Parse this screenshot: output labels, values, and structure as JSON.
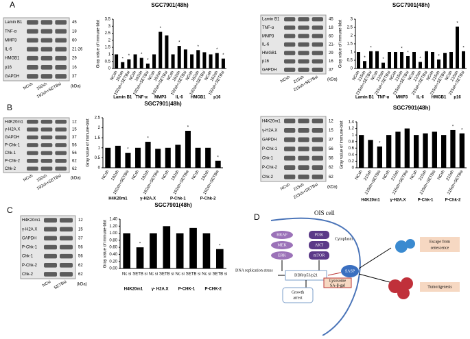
{
  "panel_letters": [
    "A",
    "B",
    "C",
    "D"
  ],
  "chart_data": [
    {
      "type": "bar",
      "title": "SGC7901(48h)",
      "ylabel": "Gray value of immune-blot",
      "color": "#000000",
      "categories": [
        "NCsh",
        "192sh",
        "192sh+SETBsi",
        "NCsh",
        "192sh",
        "192sh+SETBsi",
        "NCsh",
        "192sh",
        "192sh+SETBsi",
        "NCsh",
        "192sh",
        "192sh+SETBsi",
        "NCsh",
        "192sh",
        "192sh+SETBsi",
        "NCsh",
        "192sh",
        "192sh+SETBsi"
      ],
      "groups": [
        "Lamin B1",
        "TNF-α",
        "MMP3",
        "IL-6",
        "HMGB1",
        "p16"
      ],
      "values": [
        1,
        0.45,
        0.65,
        1,
        0.75,
        0.35,
        1,
        2.6,
        2.35,
        1,
        1.6,
        1.35,
        1,
        1.3,
        1.15,
        1,
        1.1,
        0.7
      ],
      "significance": [
        null,
        "*",
        "*",
        null,
        "*",
        "*",
        null,
        "*",
        null,
        null,
        "*",
        null,
        null,
        "*",
        null,
        null,
        "*",
        "*"
      ],
      "ylim": [
        0,
        3.5
      ],
      "yticks": [
        0,
        0.5,
        1,
        1.5,
        2,
        2.5,
        3,
        3.5
      ]
    },
    {
      "type": "bar",
      "title": "SGC7901(48h)",
      "ylabel": "Gray value of immune-blot",
      "color": "#000000",
      "categories": [
        "NCsh",
        "215sh",
        "215sh+SETBsi",
        "NCsh",
        "215sh",
        "215sh+SETBsi",
        "NCsh",
        "215sh",
        "215sh+SETBsi",
        "NCsh",
        "215sh",
        "215sh+SETBsi",
        "NCsh",
        "215sh",
        "215sh+SETBsi",
        "NCsh",
        "215sh",
        "215sh+SETBsi"
      ],
      "groups": [
        "Lamin B1",
        "TNF-α",
        "MMP3",
        "IL-6",
        "HMGB1",
        "p16"
      ],
      "values": [
        1,
        0.45,
        1.05,
        1.05,
        0.35,
        1,
        1,
        1,
        0.75,
        1,
        0.4,
        1.05,
        1,
        0.55,
        0.95,
        1,
        2.55,
        1.05
      ],
      "significance": [
        null,
        "*",
        "*",
        null,
        "*",
        null,
        null,
        "*",
        "*",
        null,
        "*",
        null,
        null,
        "*",
        null,
        null,
        "*",
        "*"
      ],
      "ylim": [
        0,
        3
      ],
      "yticks": [
        0,
        0.5,
        1,
        1.5,
        2,
        2.5,
        3
      ]
    },
    {
      "type": "bar",
      "title": "SGC7901(48h)",
      "ylabel": "Gray value of immune-blot",
      "color": "#000000",
      "categories": [
        "NCsh",
        "192sh",
        "192sh+SETBsi",
        "NCsh",
        "192sh",
        "192sh+SETBsi",
        "NCsh",
        "192sh",
        "192sh+SETBsi",
        "NCsh",
        "192sh",
        "192sh+SETBsi"
      ],
      "groups": [
        "H4K20m1",
        "γ-H2A.X",
        "P-Chk-1",
        "P-Chk-2"
      ],
      "values": [
        1,
        1.1,
        0.75,
        1,
        1.3,
        0.95,
        1,
        1.15,
        1.85,
        1,
        1,
        0.35
      ],
      "significance": [
        null,
        null,
        "*",
        null,
        "*",
        null,
        null,
        null,
        "*",
        null,
        null,
        "*"
      ],
      "ylim": [
        0,
        2.5
      ],
      "yticks": [
        0,
        0.5,
        1,
        1.5,
        2,
        2.5
      ]
    },
    {
      "type": "bar",
      "title": "SGC7901(48h)",
      "ylabel": "Gray value of immune-blot",
      "color": "#000000",
      "categories": [
        "NCsh",
        "215sh",
        "215sh+SETBsi",
        "NCsh",
        "215sh",
        "215sh+SETBsi",
        "NCsh",
        "215sh",
        "215sh+SETBsi",
        "NCsh",
        "215sh",
        "215sh+SETBsi"
      ],
      "groups": [
        "H4K20m1",
        "γ-H2A.X",
        "P-Chk-1",
        "P-Chk-2"
      ],
      "values": [
        1,
        0.85,
        0.65,
        1,
        1.1,
        1.2,
        1,
        1.05,
        1.1,
        1,
        1.15,
        1.05
      ],
      "significance": [
        null,
        null,
        "*",
        null,
        null,
        null,
        null,
        null,
        null,
        null,
        "*",
        "*"
      ],
      "ylim": [
        0,
        1.4
      ],
      "yticks": [
        0,
        0.2,
        0.4,
        0.6,
        0.8,
        1,
        1.2,
        1.4
      ]
    },
    {
      "type": "bar",
      "title": "SGC7901(48h)",
      "ylabel": "Gray value of immune-blot",
      "color": "#000000",
      "categories": [
        "Nc si",
        "SETB si",
        "Nc si",
        "SETB si",
        "Nc si",
        "SETB si",
        "Nc si",
        "SETB si"
      ],
      "groups": [
        "H4K20m1",
        "γ- H2A.X",
        "P-CHK-1",
        "P-CHK-2"
      ],
      "values": [
        1,
        0.6,
        1,
        1.2,
        1,
        1.15,
        1,
        0.55
      ],
      "significance": [
        null,
        "*",
        null,
        null,
        null,
        null,
        null,
        "*"
      ],
      "ylim": [
        0,
        1.4
      ],
      "yticks": [
        {
          "value": 0,
          "label": "0.00"
        },
        {
          "value": 0.2,
          "label": "0.20"
        },
        {
          "value": 0.4,
          "label": "0.40"
        },
        {
          "value": 0.6,
          "label": "0.60"
        },
        {
          "value": 0.8,
          "label": "0.80"
        },
        {
          "value": 1,
          "label": "1.00"
        },
        {
          "value": 1.2,
          "label": "1.20"
        },
        {
          "value": 1.4,
          "label": "1.40"
        }
      ]
    }
  ],
  "blots": [
    {
      "labels": [
        "Lamin B1",
        "TNF-α",
        "MMP3",
        "IL-6",
        "HMGB1",
        "p16",
        "GAPDH"
      ],
      "kda": [
        "45",
        "18",
        "60",
        "21-26",
        "29",
        "16",
        "37"
      ],
      "lanes": [
        "NCsh",
        "192sh",
        "192sh+SETBsi"
      ],
      "unit": "(kDa)"
    },
    {
      "labels": [
        "Lamin B1",
        "TNF-α",
        "MMP3",
        "IL-6",
        "HMGB1",
        "p16",
        "GAPDH"
      ],
      "kda": [
        "45",
        "18",
        "60",
        "21-",
        "29",
        "16",
        "37"
      ],
      "lanes": [
        "NCsh",
        "215sh",
        "215sh+SETBsi"
      ],
      "unit": "(kDa)"
    },
    {
      "labels": [
        "H4K20m1",
        "γ-H2A.X",
        "GAPDH",
        "P-Chk-1",
        "Chk-1",
        "P-Chk-2",
        "Chk-2"
      ],
      "kda": [
        "12",
        "15",
        "37",
        "56",
        "56",
        "62",
        "62"
      ],
      "lanes": [
        "NCsh",
        "192sh",
        "192sh+SETBsi"
      ],
      "unit": "(kDa)"
    },
    {
      "labels": [
        "H4K20m1",
        "γ-H2A.X",
        "GAPDH",
        "P-Chk-1",
        "Chk-1",
        "P-Chk-2",
        "Chk-2"
      ],
      "kda": [
        "12",
        "15",
        "37",
        "56",
        "56",
        "62",
        "62"
      ],
      "lanes": [
        "NCsh",
        "215sh",
        "215sh+SETBsi"
      ],
      "unit": "(kDa)"
    },
    {
      "labels": [
        "H4K20m1",
        "γ-H2A.X",
        "GAPDH",
        "P-Chk-1",
        "Chk-1",
        "P-Chk-2",
        "Chk-2"
      ],
      "kda": [
        "12",
        "15",
        "37",
        "56",
        "56",
        "62",
        "62"
      ],
      "lanes": [
        "NCsi",
        "SETBsi"
      ],
      "unit": "(kDa)"
    }
  ],
  "diagram": {
    "cell": "OIS cell",
    "kinases": [
      "BRAF",
      "MEK",
      "ERK",
      "PI3K",
      "AKT",
      "mTOR"
    ],
    "cytoplasm": "Cytoplasm",
    "stress": "DNA replication stress",
    "ddr": "DDR/p53/p21",
    "arrest": [
      "Growth",
      "arrest"
    ],
    "sasp": "SASP",
    "lysosome": [
      "Lysosome",
      "SA-β-gal"
    ],
    "escape": [
      "Escape from",
      "senescence"
    ],
    "tumor": "Tumorigenesis"
  }
}
